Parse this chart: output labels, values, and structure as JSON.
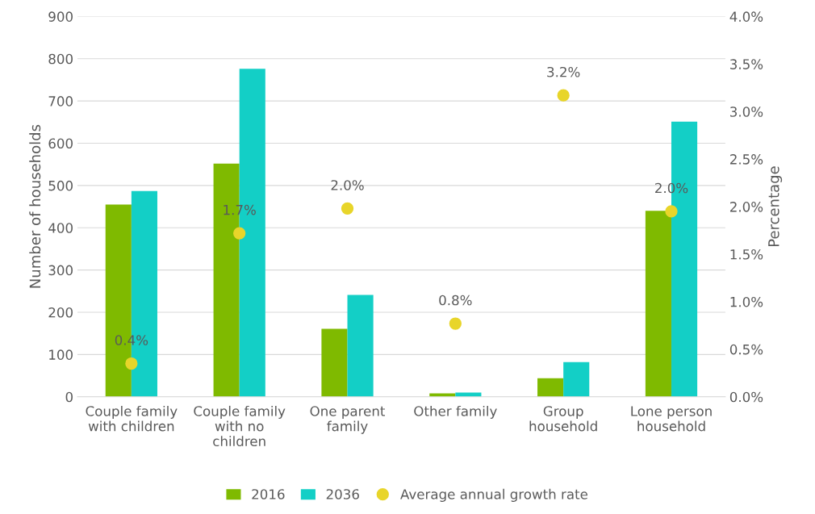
{
  "chart_data": {
    "type": "bar",
    "ylabel": "Number of households",
    "y2label": "Percentage",
    "categories": [
      "Couple family\nwith children",
      "Couple family\nwith no\nchildren",
      "One parent\nfamily",
      "Other family",
      "Group\nhousehold",
      "Lone person\nhousehold"
    ],
    "series": [
      {
        "name": "2016",
        "color": "#7fba00",
        "values": [
          455,
          552,
          161,
          8,
          44,
          440
        ]
      },
      {
        "name": "2036",
        "color": "#13cfc6",
        "values": [
          487,
          776,
          241,
          10,
          82,
          651
        ]
      },
      {
        "name": "Average annual growth rate",
        "type": "scatter",
        "axis": "y2",
        "color": "#e8d52a",
        "marker": "circle",
        "values": [
          0.35,
          1.72,
          1.98,
          0.77,
          3.17,
          1.95
        ],
        "value_labels": [
          "0.4%",
          "1.7%",
          "2.0%",
          "0.8%",
          "3.2%",
          "2.0%"
        ]
      }
    ],
    "ylim": [
      0,
      900
    ],
    "yticks": [
      0,
      100,
      200,
      300,
      400,
      500,
      600,
      700,
      800,
      900
    ],
    "y2lim": [
      0,
      4.0
    ],
    "y2ticks": [
      {
        "value": 0,
        "label": "0.0%"
      },
      {
        "value": 0.5,
        "label": "0.5%"
      },
      {
        "value": 1.0,
        "label": "1.0%"
      },
      {
        "value": 1.5,
        "label": "1.5%"
      },
      {
        "value": 2.0,
        "label": "2.0%"
      },
      {
        "value": 2.5,
        "label": "2.5%"
      },
      {
        "value": 3.0,
        "label": "3.0%"
      },
      {
        "value": 3.5,
        "label": "3.5%"
      },
      {
        "value": 4.0,
        "label": "4.0%"
      }
    ],
    "grid": "y",
    "legend": "bottom"
  }
}
